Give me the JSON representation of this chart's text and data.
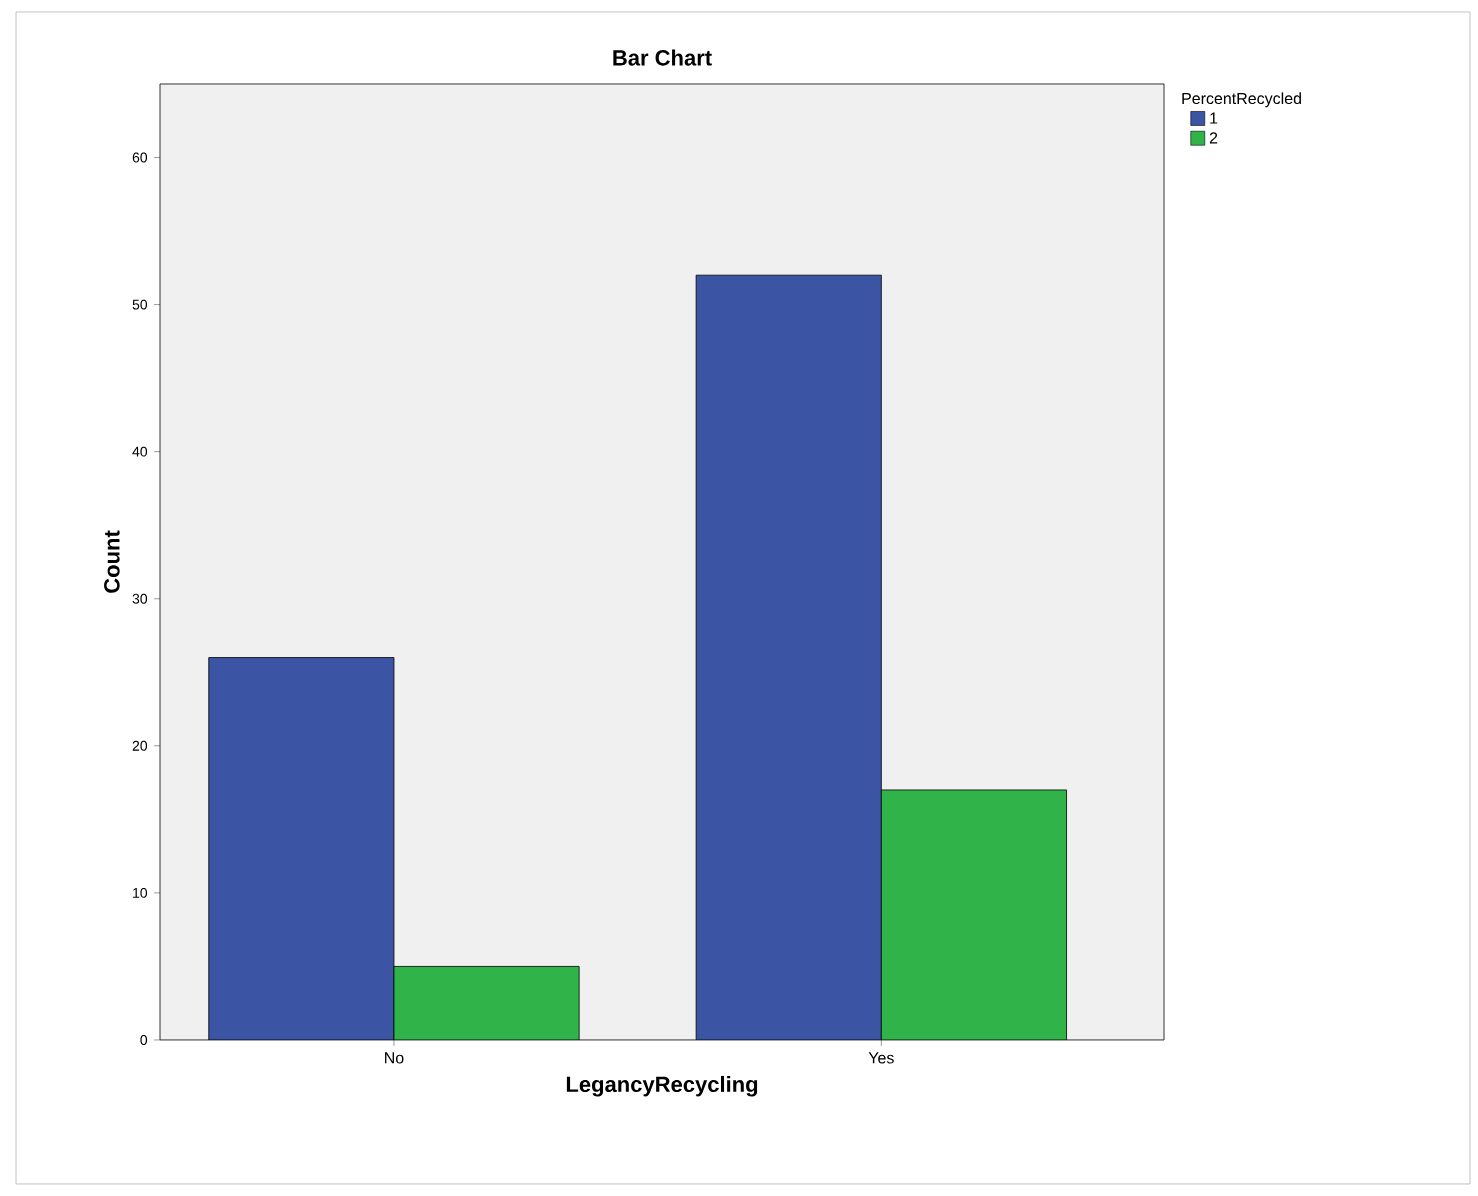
{
  "chart_data": {
    "type": "bar",
    "title": "Bar Chart",
    "xlabel": "LegancyRecycling",
    "ylabel": "Count",
    "legend_title": "PercentRecycled",
    "categories": [
      "No",
      "Yes"
    ],
    "series": [
      {
        "name": "1",
        "color": "#3b54a4",
        "values": [
          26,
          52
        ]
      },
      {
        "name": "2",
        "color": "#30b44a",
        "values": [
          5,
          17
        ]
      }
    ],
    "ylim": [
      0,
      65
    ],
    "yticks": [
      0,
      10,
      20,
      30,
      40,
      50,
      60
    ],
    "grid": false,
    "legend": "top right"
  }
}
